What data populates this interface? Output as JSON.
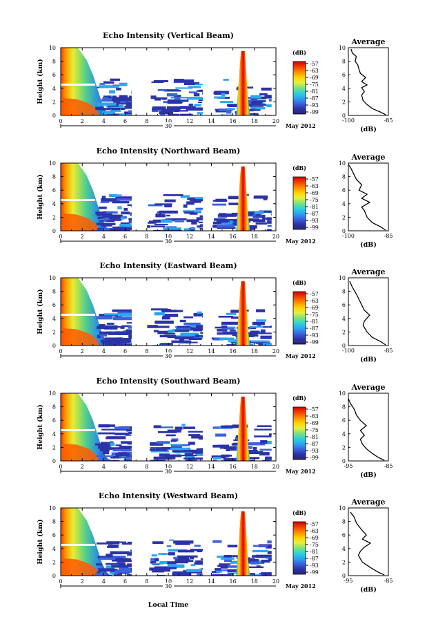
{
  "figure": {
    "x_axis_label": "Local Time",
    "date_day": "30",
    "date_month_year": "May 2012",
    "colorbar_units": "(dB)",
    "colorbar_ticks": [
      "-57",
      "-63",
      "-69",
      "-75",
      "-81",
      "-87",
      "-93",
      "-99"
    ],
    "colorbar_colors": [
      "#d60000",
      "#f04000",
      "#ff8a00",
      "#ffd200",
      "#e8f040",
      "#7fe27a",
      "#2fd3d8",
      "#2ba6f0",
      "#3a63dc",
      "#2c33a8",
      "#2a2470"
    ],
    "average_title": "Average",
    "average_xlabel": "(dB)"
  },
  "chart_data": [
    {
      "type": "heatmap",
      "title": "Echo Intensity (Vertical Beam)",
      "ylabel": "Height (km)",
      "xlabel": "Local Time",
      "xlim": [
        0,
        20
      ],
      "ylim": [
        0,
        10
      ],
      "x_ticks": [
        "0",
        "2",
        "4",
        "6",
        "8",
        "10",
        "12",
        "14",
        "16",
        "18",
        "20"
      ],
      "y_ticks": [
        "0",
        "2",
        "4",
        "6",
        "8",
        "10"
      ],
      "colorbar": {
        "label": "(dB)",
        "range": [
          -99,
          -57
        ]
      },
      "average_profile": {
        "title": "Average",
        "xlabel": "(dB)",
        "xlim": [
          -100,
          -85
        ],
        "x_ticks": [
          "-100",
          "-85"
        ],
        "points": [
          [
            -86,
            0.1
          ],
          [
            -88,
            0.5
          ],
          [
            -91,
            1.0
          ],
          [
            -93,
            1.6
          ],
          [
            -94.5,
            2.2
          ],
          [
            -95,
            3.0
          ],
          [
            -94,
            3.5
          ],
          [
            -95,
            4.1
          ],
          [
            -93,
            4.5
          ],
          [
            -95,
            5.0
          ],
          [
            -93.5,
            5.6
          ],
          [
            -95.5,
            6.2
          ],
          [
            -96,
            6.8
          ],
          [
            -96.5,
            7.5
          ],
          [
            -97.5,
            8.0
          ],
          [
            -97,
            8.7
          ],
          [
            -98.5,
            9.2
          ],
          [
            -99,
            9.8
          ]
        ]
      }
    },
    {
      "type": "heatmap",
      "title": "Echo Intensity (Northward Beam)",
      "ylabel": "Height (km)",
      "xlabel": "Local Time",
      "xlim": [
        0,
        20
      ],
      "ylim": [
        0,
        10
      ],
      "x_ticks": [
        "0",
        "2",
        "4",
        "6",
        "8",
        "10",
        "12",
        "14",
        "16",
        "18",
        "20"
      ],
      "y_ticks": [
        "0",
        "2",
        "4",
        "6",
        "8",
        "10"
      ],
      "colorbar": {
        "label": "(dB)",
        "range": [
          -99,
          -57
        ]
      },
      "average_profile": {
        "title": "Average",
        "xlabel": "(dB)",
        "xlim": [
          -100,
          -85
        ],
        "x_ticks": [
          "-100",
          "-85"
        ],
        "points": [
          [
            -86,
            0.1
          ],
          [
            -88,
            0.6
          ],
          [
            -91,
            1.2
          ],
          [
            -93,
            2.0
          ],
          [
            -94,
            3.0
          ],
          [
            -95,
            3.5
          ],
          [
            -92,
            4.2
          ],
          [
            -95,
            4.8
          ],
          [
            -93,
            5.4
          ],
          [
            -96,
            6.0
          ],
          [
            -95,
            6.8
          ],
          [
            -97,
            7.6
          ],
          [
            -98,
            8.4
          ],
          [
            -99,
            9.2
          ],
          [
            -100,
            9.8
          ]
        ]
      }
    },
    {
      "type": "heatmap",
      "title": "Echo Intensity (Eastward Beam)",
      "ylabel": "Height (km)",
      "xlabel": "Local Time",
      "xlim": [
        0,
        20
      ],
      "ylim": [
        0,
        10
      ],
      "x_ticks": [
        "0",
        "2",
        "4",
        "6",
        "8",
        "10",
        "12",
        "14",
        "16",
        "18",
        "20"
      ],
      "y_ticks": [
        "0",
        "2",
        "4",
        "6",
        "8",
        "10"
      ],
      "colorbar": {
        "label": "(dB)",
        "range": [
          -99,
          -57
        ]
      },
      "average_profile": {
        "title": "Average",
        "xlabel": "(dB)",
        "xlim": [
          -100,
          -85
        ],
        "x_ticks": [
          "-100",
          "-85"
        ],
        "points": [
          [
            -86,
            0.1
          ],
          [
            -88,
            0.6
          ],
          [
            -91,
            1.2
          ],
          [
            -93,
            2.0
          ],
          [
            -94.5,
            3.0
          ],
          [
            -94,
            3.6
          ],
          [
            -92,
            4.5
          ],
          [
            -94,
            5.2
          ],
          [
            -95,
            6.0
          ],
          [
            -96,
            6.8
          ],
          [
            -97,
            7.6
          ],
          [
            -98.5,
            8.6
          ],
          [
            -99.5,
            9.5
          ]
        ]
      }
    },
    {
      "type": "heatmap",
      "title": "Echo Intensity (Southward Beam)",
      "ylabel": "Height (km)",
      "xlabel": "Local Time",
      "xlim": [
        0,
        20
      ],
      "ylim": [
        0,
        10
      ],
      "x_ticks": [
        "0",
        "2",
        "4",
        "6",
        "8",
        "10",
        "12",
        "14",
        "16",
        "18",
        "20"
      ],
      "y_ticks": [
        "0",
        "2",
        "4",
        "6",
        "8",
        "10"
      ],
      "colorbar": {
        "label": "(dB)",
        "range": [
          -99,
          -57
        ]
      },
      "average_profile": {
        "title": "Average",
        "xlabel": "(dB)",
        "xlim": [
          -95,
          -85
        ],
        "x_ticks": [
          "-95",
          "-85"
        ],
        "points": [
          [
            -86,
            0.1
          ],
          [
            -87.5,
            0.5
          ],
          [
            -89,
            1.1
          ],
          [
            -90.5,
            1.8
          ],
          [
            -91.5,
            2.5
          ],
          [
            -92,
            3.2
          ],
          [
            -91,
            3.8
          ],
          [
            -92,
            4.5
          ],
          [
            -90.5,
            5.2
          ],
          [
            -92,
            6.0
          ],
          [
            -93,
            6.8
          ],
          [
            -93.5,
            7.6
          ],
          [
            -94.5,
            8.5
          ],
          [
            -95,
            9.2
          ]
        ]
      }
    },
    {
      "type": "heatmap",
      "title": "Echo Intensity (Westward Beam)",
      "ylabel": "Height (km)",
      "xlabel": "Local Time",
      "xlim": [
        0,
        20
      ],
      "ylim": [
        0,
        10
      ],
      "x_ticks": [
        "0",
        "2",
        "4",
        "6",
        "8",
        "10",
        "12",
        "14",
        "16",
        "18",
        "20"
      ],
      "y_ticks": [
        "0",
        "2",
        "4",
        "6",
        "8",
        "10"
      ],
      "colorbar": {
        "label": "(dB)",
        "range": [
          -99,
          -57
        ]
      },
      "average_profile": {
        "title": "Average",
        "xlabel": "(dB)",
        "xlim": [
          -95,
          -85
        ],
        "x_ticks": [
          "-95",
          "-85"
        ],
        "points": [
          [
            -86,
            0.1
          ],
          [
            -87.5,
            0.5
          ],
          [
            -89.5,
            1.2
          ],
          [
            -91.5,
            2.0
          ],
          [
            -92.5,
            3.0
          ],
          [
            -92,
            3.6
          ],
          [
            -91,
            4.2
          ],
          [
            -89.5,
            4.8
          ],
          [
            -91.5,
            5.4
          ],
          [
            -90.5,
            6.0
          ],
          [
            -92,
            7.0
          ],
          [
            -93,
            7.8
          ],
          [
            -93.5,
            8.6
          ],
          [
            -94.5,
            9.4
          ]
        ]
      }
    }
  ]
}
